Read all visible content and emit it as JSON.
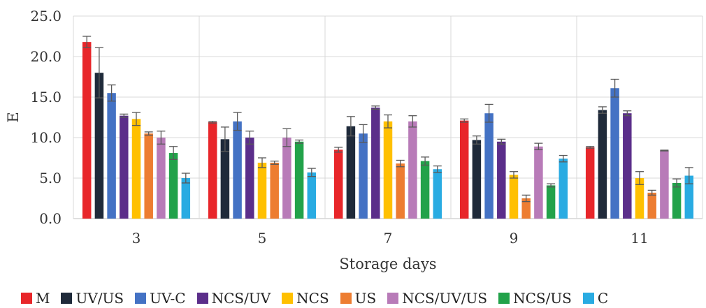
{
  "chart_data": {
    "type": "bar",
    "xlabel": "Storage days",
    "ylabel": "E",
    "ylim": [
      0,
      25
    ],
    "yticks": [
      "0.0",
      "5.0",
      "10.0",
      "15.0",
      "20.0",
      "25.0"
    ],
    "grid": true,
    "legend_position": "bottom",
    "categories": [
      "3",
      "5",
      "7",
      "9",
      "11"
    ],
    "series": [
      {
        "name": "M",
        "color": "#e8262a",
        "values": [
          21.8,
          11.9,
          8.5,
          12.1,
          8.8
        ],
        "errors": [
          0.7,
          0.1,
          0.3,
          0.2,
          0.1
        ]
      },
      {
        "name": "UV/US",
        "color": "#1f2a3a",
        "values": [
          18.0,
          9.8,
          11.4,
          9.7,
          13.4
        ],
        "errors": [
          3.1,
          1.5,
          1.2,
          0.5,
          0.4
        ]
      },
      {
        "name": "UV-C",
        "color": "#4472c4",
        "values": [
          15.5,
          12.0,
          10.5,
          13.0,
          16.1
        ],
        "errors": [
          1.0,
          1.1,
          1.1,
          1.1,
          1.1
        ]
      },
      {
        "name": "NCS/UV",
        "color": "#5b2e8a",
        "values": [
          12.7,
          10.0,
          13.7,
          9.5,
          13.0
        ],
        "errors": [
          0.2,
          0.8,
          0.2,
          0.3,
          0.3
        ]
      },
      {
        "name": "NCS",
        "color": "#ffc000",
        "values": [
          12.3,
          6.9,
          12.0,
          5.4,
          5.0
        ],
        "errors": [
          0.8,
          0.6,
          0.8,
          0.4,
          0.8
        ]
      },
      {
        "name": "US",
        "color": "#ed7d31",
        "values": [
          10.5,
          6.9,
          6.8,
          2.5,
          3.2
        ],
        "errors": [
          0.2,
          0.2,
          0.4,
          0.4,
          0.3
        ]
      },
      {
        "name": "NCS/UV/US",
        "color": "#b87bb8",
        "values": [
          10.0,
          10.0,
          12.0,
          8.9,
          8.4
        ],
        "errors": [
          0.8,
          1.1,
          0.7,
          0.4,
          0.05
        ]
      },
      {
        "name": "NCS/US",
        "color": "#22a24a",
        "values": [
          8.1,
          9.5,
          7.1,
          4.1,
          4.4
        ],
        "errors": [
          0.8,
          0.2,
          0.5,
          0.2,
          0.5
        ]
      },
      {
        "name": "C",
        "color": "#29abe2",
        "values": [
          5.0,
          5.7,
          6.1,
          7.4,
          5.3
        ],
        "errors": [
          0.6,
          0.5,
          0.4,
          0.4,
          1.0
        ]
      }
    ]
  }
}
